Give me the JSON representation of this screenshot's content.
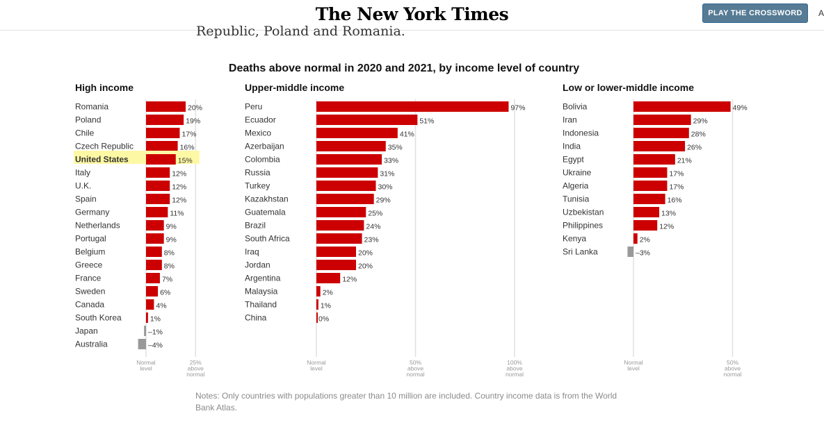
{
  "header": {
    "logo": "The New York Times",
    "play_button": "PLAY THE CROSSWORD",
    "edge_text": "A"
  },
  "article": {
    "text_fragment": "Republic, Poland and Romania."
  },
  "chart_title": "Deaths above normal in 2020 and 2021, by income level of country",
  "notes": "Notes: Only countries with populations greater than 10 million are included. Country income data is from the World Bank Atlas.",
  "colors": {
    "positive": "#cc0000",
    "negative": "#999999",
    "highlight": "#fdf8a4",
    "gridline": "#e0e0e0",
    "button": "#567b95"
  },
  "chart_data": [
    {
      "type": "bar",
      "orientation": "horizontal",
      "title": "High income",
      "unit": "%",
      "highlight": "United States",
      "ticks": [
        {
          "value": 0,
          "lines": [
            "Normal",
            "level"
          ]
        },
        {
          "value": 25,
          "lines": [
            "25%",
            "above",
            "normal"
          ]
        }
      ],
      "categories": [
        "Romania",
        "Poland",
        "Chile",
        "Czech Republic",
        "United States",
        "Italy",
        "U.K.",
        "Spain",
        "Germany",
        "Netherlands",
        "Portugal",
        "Belgium",
        "Greece",
        "France",
        "Sweden",
        "Canada",
        "South Korea",
        "Japan",
        "Australia"
      ],
      "values": [
        20,
        19,
        17,
        16,
        15,
        12,
        12,
        12,
        11,
        9,
        9,
        8,
        8,
        7,
        6,
        4,
        1,
        -1,
        -4
      ]
    },
    {
      "type": "bar",
      "orientation": "horizontal",
      "title": "Upper-middle income",
      "unit": "%",
      "ticks": [
        {
          "value": 0,
          "lines": [
            "Normal",
            "level"
          ]
        },
        {
          "value": 50,
          "lines": [
            "50%",
            "above",
            "normal"
          ]
        },
        {
          "value": 100,
          "lines": [
            "100%",
            "above",
            "normal"
          ]
        }
      ],
      "categories": [
        "Peru",
        "Ecuador",
        "Mexico",
        "Azerbaijan",
        "Colombia",
        "Russia",
        "Turkey",
        "Kazakhstan",
        "Guatemala",
        "Brazil",
        "South Africa",
        "Iraq",
        "Jordan",
        "Argentina",
        "Malaysia",
        "Thailand",
        "China"
      ],
      "values": [
        97,
        51,
        41,
        35,
        33,
        31,
        30,
        29,
        25,
        24,
        23,
        20,
        20,
        12,
        2,
        1,
        0
      ]
    },
    {
      "type": "bar",
      "orientation": "horizontal",
      "title": "Low or lower-middle income",
      "unit": "%",
      "ticks": [
        {
          "value": 0,
          "lines": [
            "Normal",
            "level"
          ]
        },
        {
          "value": 50,
          "lines": [
            "50%",
            "above",
            "normal"
          ]
        }
      ],
      "categories": [
        "Bolivia",
        "Iran",
        "Indonesia",
        "India",
        "Egypt",
        "Ukraine",
        "Algeria",
        "Tunisia",
        "Uzbekistan",
        "Philippines",
        "Kenya",
        "Sri Lanka"
      ],
      "values": [
        49,
        29,
        28,
        26,
        21,
        17,
        17,
        16,
        13,
        12,
        2,
        -3
      ]
    }
  ]
}
